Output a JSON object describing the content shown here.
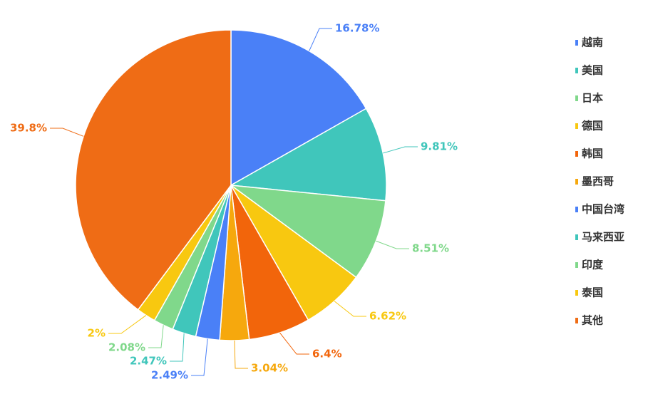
{
  "chart_data": {
    "type": "pie",
    "categories": [
      "越南",
      "美国",
      "日本",
      "德国",
      "韩国",
      "墨西哥",
      "中国台湾",
      "马来西亚",
      "印度",
      "泰国",
      "其他"
    ],
    "values": [
      16.78,
      9.81,
      8.51,
      6.62,
      6.4,
      3.04,
      2.49,
      2.47,
      2.08,
      2,
      39.8
    ],
    "value_labels": [
      "16.78%",
      "9.81%",
      "8.51%",
      "6.62%",
      "6.4%",
      "3.04%",
      "2.49%",
      "2.47%",
      "2.08%",
      "2%",
      "39.8%"
    ],
    "colors": [
      "#4a80f7",
      "#40c6bb",
      "#80d88b",
      "#f8c810",
      "#f2650b",
      "#f6a80d",
      "#4a80f7",
      "#40c6bb",
      "#80d88b",
      "#f8c810",
      "#ef6c15"
    ],
    "legend": "right"
  }
}
